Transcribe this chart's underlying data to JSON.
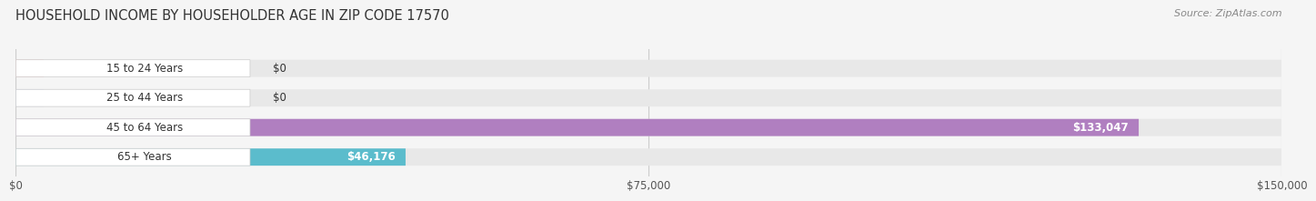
{
  "title": "HOUSEHOLD INCOME BY HOUSEHOLDER AGE IN ZIP CODE 17570",
  "source": "Source: ZipAtlas.com",
  "categories": [
    "15 to 24 Years",
    "25 to 44 Years",
    "45 to 64 Years",
    "65+ Years"
  ],
  "values": [
    0,
    0,
    133047,
    46176
  ],
  "bar_colors": [
    "#f0a0a0",
    "#a8bfe8",
    "#b07fc0",
    "#5bbccc"
  ],
  "value_labels": [
    "$0",
    "$0",
    "$133,047",
    "$46,176"
  ],
  "xlim": [
    0,
    150000
  ],
  "xticks": [
    0,
    75000,
    150000
  ],
  "xtick_labels": [
    "$0",
    "$75,000",
    "$150,000"
  ],
  "background_color": "#f5f5f5",
  "bar_background_color": "#e8e8e8",
  "title_fontsize": 10.5,
  "source_fontsize": 8,
  "bar_height": 0.58
}
